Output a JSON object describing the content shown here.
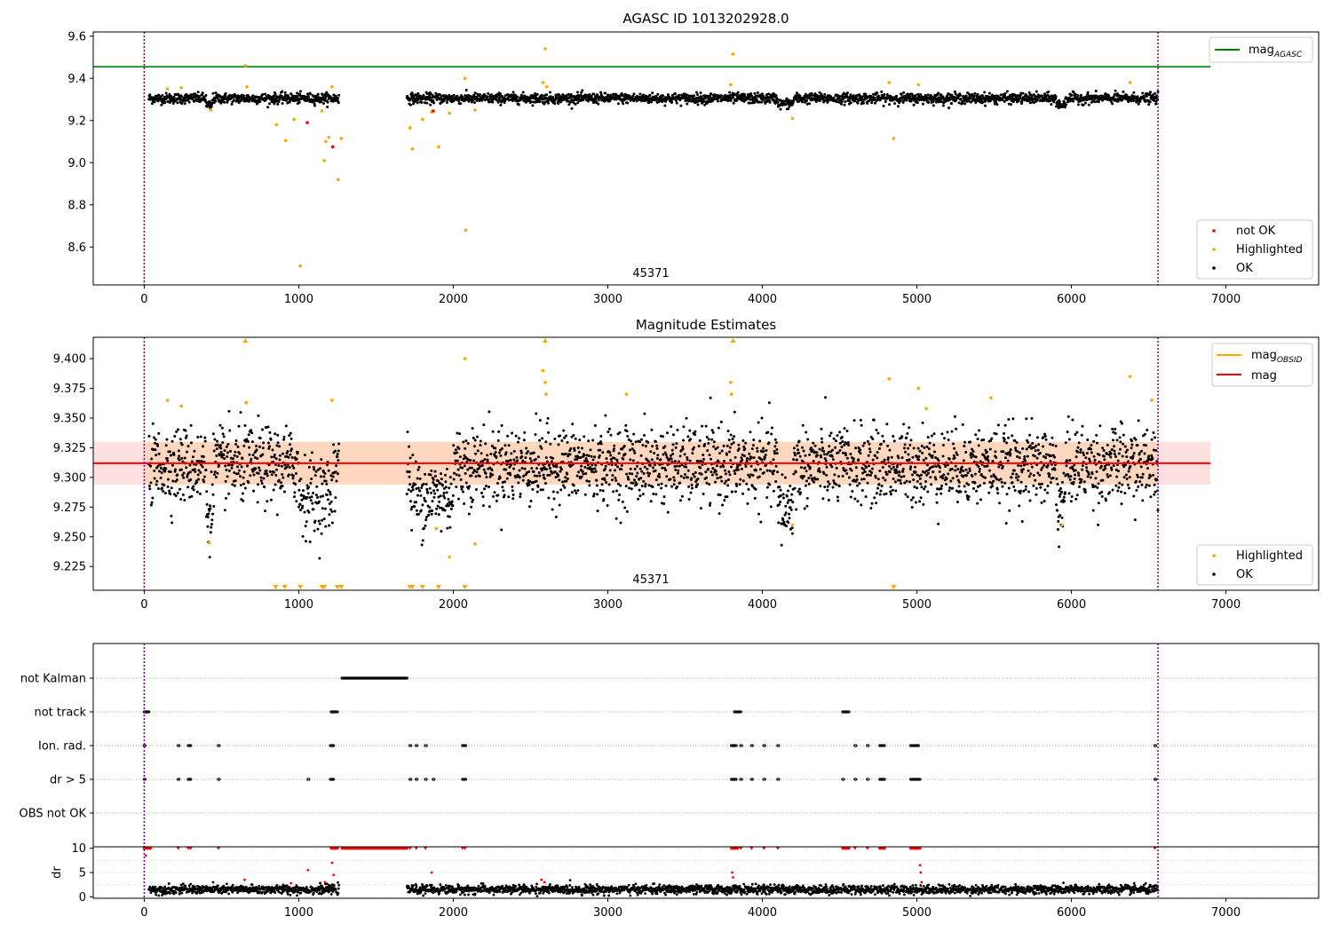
{
  "chart_data": [
    {
      "type": "scatter",
      "title": "AGASC ID 1013202928.0",
      "annotation": "45371",
      "xlim": [
        -330,
        7600
      ],
      "ylim": [
        8.42,
        9.62
      ],
      "x_ticks": [
        0,
        1000,
        2000,
        3000,
        4000,
        5000,
        6000,
        7000
      ],
      "y_ticks": [
        8.6,
        8.8,
        9.0,
        9.2,
        9.4,
        9.6
      ],
      "vertical_lines": [
        0,
        6560
      ],
      "reference_line": {
        "name": "mag_AGASC",
        "value": 9.455,
        "x_range": [
          -330,
          6900
        ],
        "color": "#008000"
      },
      "ok_band": {
        "mean": 9.305,
        "spread": 0.012
      },
      "ok_segments": [
        [
          30,
          1260
        ],
        [
          1700,
          6560
        ]
      ],
      "ok_segment_dips": [
        {
          "x": [
            400,
            440
          ],
          "y": 9.27
        },
        {
          "x": [
            4100,
            4200
          ],
          "y": 9.28
        },
        {
          "x": [
            5900,
            5960
          ],
          "y": 9.275
        }
      ],
      "series": [
        {
          "name": "not OK",
          "color": "#ff0000",
          "points": [
            [
              1055,
              9.19
            ],
            [
              1220,
              9.075
            ],
            [
              1870,
              9.245
            ]
          ]
        },
        {
          "name": "Highlighted",
          "color": "#ffa500",
          "points": [
            [
              150,
              9.35
            ],
            [
              240,
              9.355
            ],
            [
              430,
              9.25
            ],
            [
              655,
              9.46
            ],
            [
              665,
              9.36
            ],
            [
              855,
              9.18
            ],
            [
              915,
              9.105
            ],
            [
              970,
              9.205
            ],
            [
              1010,
              8.51
            ],
            [
              1150,
              9.245
            ],
            [
              1165,
              9.01
            ],
            [
              1175,
              9.1
            ],
            [
              1195,
              9.12
            ],
            [
              1215,
              9.36
            ],
            [
              1255,
              8.92
            ],
            [
              1275,
              9.115
            ],
            [
              1720,
              9.165
            ],
            [
              1735,
              9.065
            ],
            [
              1800,
              9.205
            ],
            [
              1860,
              9.24
            ],
            [
              1905,
              9.075
            ],
            [
              1975,
              9.235
            ],
            [
              2075,
              9.4
            ],
            [
              2080,
              8.68
            ],
            [
              2140,
              9.25
            ],
            [
              2580,
              9.38
            ],
            [
              2595,
              9.54
            ],
            [
              2605,
              9.36
            ],
            [
              3795,
              9.37
            ],
            [
              3810,
              9.515
            ],
            [
              4195,
              9.21
            ],
            [
              4820,
              9.38
            ],
            [
              4850,
              9.115
            ],
            [
              5010,
              9.37
            ],
            [
              6380,
              9.38
            ]
          ]
        },
        {
          "name": "OK",
          "color": "#000000",
          "points": []
        }
      ],
      "legend": {
        "position": "bottom-right",
        "entries": [
          "not OK",
          "Highlighted",
          "OK"
        ]
      },
      "legend_top": {
        "position": "top-right",
        "entries": [
          "mag_AGASC"
        ]
      }
    },
    {
      "type": "scatter",
      "title": "Magnitude Estimates",
      "annotation": "45371",
      "xlim": [
        -330,
        7600
      ],
      "ylim": [
        9.205,
        9.418
      ],
      "x_ticks": [
        0,
        1000,
        2000,
        3000,
        4000,
        5000,
        6000,
        7000
      ],
      "y_ticks": [
        9.225,
        9.25,
        9.275,
        9.3,
        9.325,
        9.35,
        9.375,
        9.4
      ],
      "vertical_lines": [
        0,
        6560
      ],
      "mag_line": {
        "name": "mag",
        "value": 9.312,
        "band": [
          9.294,
          9.33
        ],
        "x_range": [
          -330,
          6900
        ],
        "color": "#ff0000"
      },
      "mag_obsid": {
        "name": "mag_OBSID",
        "color": "#ffa500"
      },
      "ok_band": {
        "mean": 9.31,
        "spread": 0.016
      },
      "ok_segments": [
        [
          30,
          1260
        ],
        [
          1700,
          6560
        ]
      ],
      "ok_segment_dips": [
        {
          "x": [
            400,
            440
          ],
          "y": 9.27
        },
        {
          "x": [
            1000,
            1220
          ],
          "y": 9.285
        },
        {
          "x": [
            1720,
            2000
          ],
          "y": 9.285
        },
        {
          "x": [
            4100,
            4200
          ],
          "y": 9.275
        },
        {
          "x": [
            5900,
            5960
          ],
          "y": 9.28
        }
      ],
      "highlighted_points": [
        [
          150,
          9.365
        ],
        [
          240,
          9.36
        ],
        [
          420,
          9.245
        ],
        [
          660,
          9.363
        ],
        [
          1215,
          9.365
        ],
        [
          1890,
          9.257
        ],
        [
          1975,
          9.233
        ],
        [
          2075,
          9.4
        ],
        [
          2140,
          9.244
        ],
        [
          2580,
          9.39
        ],
        [
          2595,
          9.38
        ],
        [
          2600,
          9.37
        ],
        [
          3120,
          9.37
        ],
        [
          3795,
          9.38
        ],
        [
          3800,
          9.37
        ],
        [
          4195,
          9.26
        ],
        [
          4820,
          9.383
        ],
        [
          5010,
          9.375
        ],
        [
          5060,
          9.358
        ],
        [
          5480,
          9.367
        ],
        [
          5940,
          9.26
        ],
        [
          6380,
          9.385
        ],
        [
          6520,
          9.365
        ]
      ],
      "highlighted_clipped_high_x": [
        655,
        2595,
        3810
      ],
      "highlighted_clipped_low_x": [
        850,
        910,
        1010,
        1150,
        1165,
        1250,
        1275,
        1720,
        1735,
        1800,
        1905,
        2075,
        4850
      ],
      "legend": {
        "position": "bottom-right",
        "entries": [
          "Highlighted",
          "OK"
        ]
      },
      "legend_top": {
        "position": "top-right",
        "entries": [
          "mag_OBSID",
          "mag"
        ]
      }
    },
    {
      "type": "scatter",
      "xlim": [
        -330,
        7600
      ],
      "x_ticks": [
        0,
        1000,
        2000,
        3000,
        4000,
        5000,
        6000,
        7000
      ],
      "vertical_lines": [
        0,
        6560
      ],
      "flag_rows": [
        "not Kalman",
        "not track",
        "Ion. rad.",
        "dr > 5",
        "OBS not OK"
      ],
      "flag_spans": {
        "not Kalman": [
          [
            1280,
            1700
          ]
        ],
        "not track": [
          [
            0,
            30
          ],
          [
            1210,
            1250
          ],
          [
            3820,
            3860
          ],
          [
            4520,
            4560
          ]
        ],
        "Ion. rad.": [
          [
            0,
            5
          ],
          [
            220,
            225
          ],
          [
            285,
            300
          ],
          [
            480,
            485
          ],
          [
            1205,
            1225
          ],
          [
            1720,
            1725
          ],
          [
            1760,
            1765
          ],
          [
            1820,
            1825
          ],
          [
            2060,
            2080
          ],
          [
            3800,
            3830
          ],
          [
            3860,
            3865
          ],
          [
            3930,
            3935
          ],
          [
            4010,
            4015
          ],
          [
            4100,
            4105
          ],
          [
            4600,
            4605
          ],
          [
            4680,
            4685
          ],
          [
            4760,
            4790
          ],
          [
            4960,
            5010
          ],
          [
            6540,
            6545
          ]
        ],
        "dr > 5": [
          [
            0,
            5
          ],
          [
            220,
            225
          ],
          [
            285,
            300
          ],
          [
            480,
            485
          ],
          [
            1060,
            1065
          ],
          [
            1205,
            1225
          ],
          [
            1720,
            1725
          ],
          [
            1760,
            1765
          ],
          [
            1820,
            1825
          ],
          [
            1870,
            1875
          ],
          [
            2060,
            2080
          ],
          [
            3800,
            3830
          ],
          [
            3860,
            3865
          ],
          [
            3930,
            3935
          ],
          [
            4010,
            4015
          ],
          [
            4100,
            4105
          ],
          [
            4520,
            4525
          ],
          [
            4600,
            4605
          ],
          [
            4680,
            4685
          ],
          [
            4760,
            4790
          ],
          [
            4960,
            5020
          ],
          [
            6540,
            6545
          ]
        ],
        "OBS not OK": []
      },
      "dr_panel": {
        "ylabel": "dr",
        "ylim": [
          -0.3,
          10.3
        ],
        "y_ticks": [
          0,
          5,
          10
        ],
        "ok_mean": 1.5,
        "ok_segments": [
          [
            30,
            1260
          ],
          [
            1700,
            6560
          ]
        ],
        "red_clipped_spans": [
          [
            0,
            40
          ],
          [
            1210,
            1250
          ],
          [
            1280,
            1700
          ],
          [
            3800,
            3840
          ],
          [
            4520,
            4560
          ],
          [
            4760,
            4790
          ],
          [
            4960,
            5020
          ]
        ],
        "red_clipped_points": [
          220,
          285,
          300,
          480,
          1720,
          1760,
          1820,
          2060,
          2075,
          3860,
          3930,
          4010,
          4100,
          4600,
          4680,
          6540
        ],
        "red_points": [
          [
            10,
            8.5
          ],
          [
            650,
            3.5
          ],
          [
            950,
            2.8
          ],
          [
            1060,
            5.5
          ],
          [
            1170,
            3.0
          ],
          [
            1215,
            7.0
          ],
          [
            1225,
            4.5
          ],
          [
            1860,
            5.0
          ],
          [
            2570,
            3.5
          ],
          [
            2590,
            3.0
          ],
          [
            3805,
            5.0
          ],
          [
            3810,
            4.0
          ],
          [
            5020,
            6.5
          ],
          [
            5025,
            5.0
          ],
          [
            5030,
            3.0
          ]
        ]
      }
    }
  ],
  "legends": {
    "p1_top": {
      "label": "mag",
      "sub": "AGASC"
    },
    "p1_bottom": {
      "notok": "not OK",
      "highlighted": "Highlighted",
      "ok": "OK"
    },
    "p2_top": {
      "label1": "mag",
      "sub1": "OBSID",
      "label2": "mag"
    },
    "p2_bottom": {
      "highlighted": "Highlighted",
      "ok": "OK"
    }
  }
}
